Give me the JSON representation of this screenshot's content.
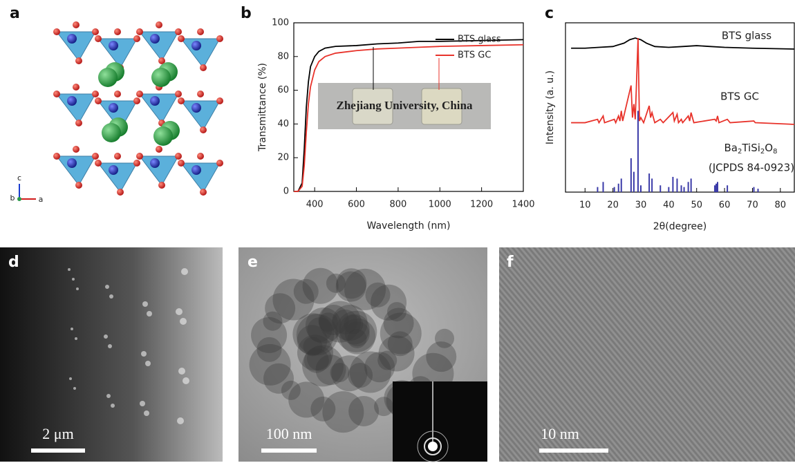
{
  "panel_labels": [
    "a",
    "b",
    "c",
    "d",
    "e",
    "f"
  ],
  "crystal_axes": [
    "c",
    "b",
    "a"
  ],
  "scale_bars": [
    "2 μm",
    "100 nm",
    "10 nm"
  ],
  "chart_data": [
    {
      "type": "line",
      "xlabel": "Wavelength (nm)",
      "ylabel": "Transmittance (%)",
      "xlim": [
        300,
        1400
      ],
      "xticks": [
        400,
        600,
        800,
        1000,
        1200,
        1400
      ],
      "ylim": [
        0,
        100
      ],
      "yticks": [
        0,
        20,
        40,
        60,
        80,
        100
      ],
      "legend": "upper right",
      "annotations": [
        "Zhejiang University, China"
      ],
      "x": [
        300,
        320,
        340,
        350,
        360,
        370,
        380,
        400,
        420,
        450,
        500,
        600,
        700,
        800,
        900,
        1000,
        1200,
        1400
      ],
      "series": [
        {
          "name": "BTS glass",
          "color": "#000000",
          "values": [
            0,
            0,
            5,
            25,
            50,
            65,
            74,
            80,
            83,
            85,
            86,
            86.5,
            87.5,
            88,
            89,
            89,
            89.5,
            90
          ]
        },
        {
          "name": "BTS GC",
          "color": "#e8322a",
          "values": [
            0,
            0,
            3,
            15,
            35,
            52,
            62,
            72,
            77,
            80,
            82,
            83.5,
            84.5,
            85,
            85.5,
            86,
            86.5,
            87
          ]
        }
      ]
    },
    {
      "type": "line",
      "xlabel": "2θ(degree)",
      "ylabel": "Intensity (a. u.)",
      "xlim": [
        3,
        85
      ],
      "xticks": [
        10,
        20,
        30,
        40,
        50,
        60,
        70,
        80
      ],
      "ylim": [
        0,
        100
      ],
      "annotations": [
        "(JCPDS 84-0923)"
      ],
      "series": [
        {
          "name": "BTS glass",
          "color": "#000000",
          "x": [
            5,
            10,
            15,
            20,
            24,
            26,
            28,
            30,
            32,
            35,
            40,
            45,
            50,
            55,
            60,
            70,
            85
          ],
          "values": [
            85,
            85,
            85.5,
            86,
            88,
            90,
            91,
            90,
            88,
            86,
            85.5,
            86,
            86.5,
            86,
            85.5,
            85,
            84.5
          ]
        },
        {
          "name": "BTS GC",
          "color": "#e8322a",
          "x": [
            5,
            10,
            14.5,
            15,
            16.5,
            17,
            20.5,
            21,
            22,
            22.5,
            23,
            23.5,
            26.5,
            27,
            27.5,
            28,
            29,
            29.5,
            30,
            31,
            33,
            33.5,
            34,
            35,
            37,
            38,
            41.5,
            42,
            43,
            43.5,
            44.5,
            45,
            47,
            47.5,
            48,
            49,
            56.5,
            57,
            57.5,
            58,
            61,
            62,
            70.5,
            71,
            85
          ],
          "values": [
            41,
            41,
            43,
            41,
            45,
            41,
            43,
            41,
            45,
            42,
            48,
            42,
            63,
            44,
            52,
            43,
            91,
            42,
            44,
            41,
            51,
            44,
            47,
            41,
            43,
            41,
            47,
            42,
            46,
            41,
            43,
            41,
            45,
            42,
            47,
            41,
            43,
            42,
            45,
            41,
            43,
            41,
            42,
            41,
            40
          ]
        },
        {
          "name": "Ba2TiSi2O8",
          "color": "#3a3aa8",
          "kind": "stick",
          "x": [
            14.5,
            16.5,
            20.5,
            22,
            23,
            26.5,
            27.5,
            29,
            30,
            33,
            34,
            37,
            40,
            41.5,
            43,
            44.5,
            45.5,
            47,
            48,
            56.5,
            57,
            57.5,
            61,
            70.5,
            72
          ],
          "values": [
            3,
            6,
            3,
            5,
            8,
            20,
            12,
            48,
            4,
            11,
            8,
            4,
            3,
            9,
            8,
            4,
            3,
            6,
            8,
            4,
            5,
            6,
            4,
            3,
            2
          ]
        }
      ]
    }
  ]
}
